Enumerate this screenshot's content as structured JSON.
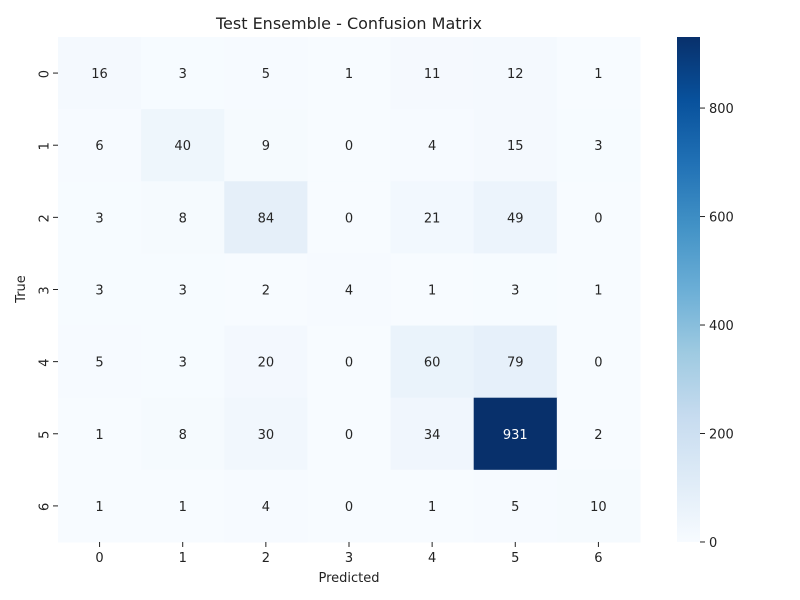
{
  "chart_data": {
    "type": "heatmap",
    "title": "Test Ensemble - Confusion Matrix",
    "xlabel": "Predicted",
    "ylabel": "True",
    "x_categories": [
      "0",
      "1",
      "2",
      "3",
      "4",
      "5",
      "6"
    ],
    "y_categories": [
      "0",
      "1",
      "2",
      "3",
      "4",
      "5",
      "6"
    ],
    "values": [
      [
        16,
        3,
        5,
        1,
        11,
        12,
        1
      ],
      [
        6,
        40,
        9,
        0,
        4,
        15,
        3
      ],
      [
        3,
        8,
        84,
        0,
        21,
        49,
        0
      ],
      [
        3,
        3,
        2,
        4,
        1,
        3,
        1
      ],
      [
        5,
        3,
        20,
        0,
        60,
        79,
        0
      ],
      [
        1,
        8,
        30,
        0,
        34,
        931,
        2
      ],
      [
        1,
        1,
        4,
        0,
        1,
        5,
        10
      ]
    ],
    "colorbar": {
      "min": 0,
      "max": 931,
      "ticks": [
        0,
        200,
        400,
        600,
        800
      ],
      "colormap": "Blues",
      "colors": [
        "#f7fbff",
        "#deebf7",
        "#c6dbef",
        "#9ecae1",
        "#6baed6",
        "#4292c6",
        "#2171b5",
        "#08519c",
        "#08306b"
      ]
    }
  }
}
